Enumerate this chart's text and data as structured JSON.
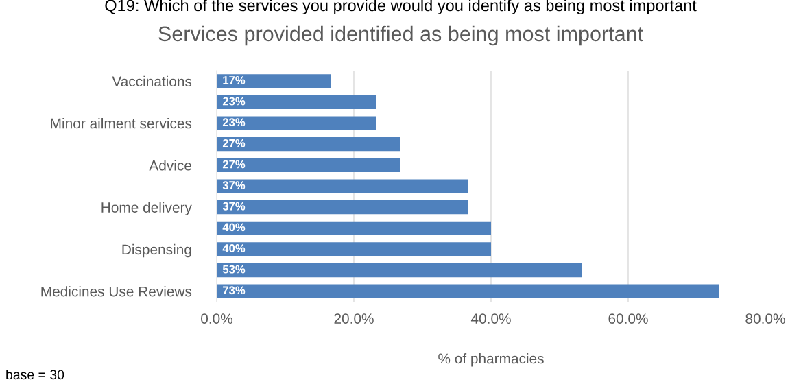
{
  "chart_data": {
    "type": "bar",
    "orientation": "horizontal",
    "title": "Services provided identified as being most important",
    "xlabel": "% of pharmacies",
    "annotations": [
      "Q19: Which of the services you provide would you identify as being most important",
      "base = 30"
    ],
    "categories": [
      "Vaccinations",
      null,
      "Minor ailment services",
      null,
      "Advice",
      null,
      "Home delivery",
      null,
      "Dispensing",
      null,
      "Medicines Use Reviews"
    ],
    "values": [
      16.7,
      23.3,
      23.3,
      26.7,
      26.7,
      36.7,
      36.7,
      40,
      40,
      53.3,
      73.3
    ],
    "value_labels": [
      "17%",
      "23%",
      "23%",
      "27%",
      "27%",
      "37%",
      "37%",
      "40%",
      "40%",
      "53%",
      "73%"
    ],
    "color": "#4f81bd",
    "xlim": [
      0,
      80
    ],
    "xticks": [
      {
        "value": 0,
        "label": "0.0%"
      },
      {
        "value": 20,
        "label": "20.0%"
      },
      {
        "value": 40,
        "label": "40.0%"
      },
      {
        "value": 60,
        "label": "60.0%"
      },
      {
        "value": 80,
        "label": "80.0%"
      }
    ],
    "grid": "x"
  }
}
